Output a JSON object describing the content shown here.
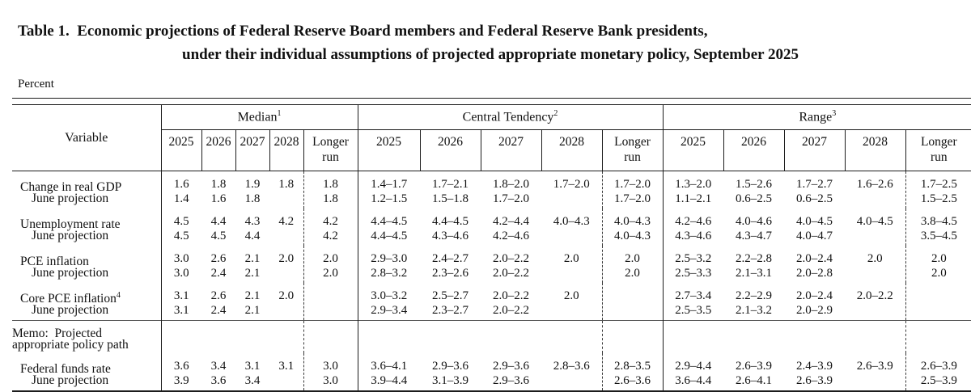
{
  "title_line1": "Table 1.  Economic projections of Federal Reserve Board members and Federal Reserve Bank presidents,",
  "title_line2": "under their individual assumptions of projected appropriate monetary policy, September 2025",
  "unit_label": "Percent",
  "table": {
    "variable_header": "Variable",
    "groups": [
      {
        "label": "Median",
        "sup": "1"
      },
      {
        "label": "Central Tendency",
        "sup": "2"
      },
      {
        "label": "Range",
        "sup": "3"
      }
    ],
    "year_cols": [
      "2025",
      "2026",
      "2027",
      "2028",
      "Longer\nrun"
    ],
    "rows": [
      {
        "name": "change-in-real-gdp",
        "lines": [
          "Change in real GDP",
          "June projection"
        ],
        "median": [
          [
            "1.6",
            "1.8",
            "1.9",
            "1.8",
            "1.8"
          ],
          [
            "1.4",
            "1.6",
            "1.8",
            "",
            "1.8"
          ]
        ],
        "central_tendency": [
          [
            "1.4–1.7",
            "1.7–2.1",
            "1.8–2.0",
            "1.7–2.0",
            "1.7–2.0"
          ],
          [
            "1.2–1.5",
            "1.5–1.8",
            "1.7–2.0",
            "",
            "1.7–2.0"
          ]
        ],
        "range": [
          [
            "1.3–2.0",
            "1.5–2.6",
            "1.7–2.7",
            "1.6–2.6",
            "1.7–2.5"
          ],
          [
            "1.1–2.1",
            "0.6–2.5",
            "0.6–2.5",
            "",
            "1.5–2.5"
          ]
        ]
      },
      {
        "name": "unemployment-rate",
        "lines": [
          "Unemployment rate",
          "June projection"
        ],
        "median": [
          [
            "4.5",
            "4.4",
            "4.3",
            "4.2",
            "4.2"
          ],
          [
            "4.5",
            "4.5",
            "4.4",
            "",
            "4.2"
          ]
        ],
        "central_tendency": [
          [
            "4.4–4.5",
            "4.4–4.5",
            "4.2–4.4",
            "4.0–4.3",
            "4.0–4.3"
          ],
          [
            "4.4–4.5",
            "4.3–4.6",
            "4.2–4.6",
            "",
            "4.0–4.3"
          ]
        ],
        "range": [
          [
            "4.2–4.6",
            "4.0–4.6",
            "4.0–4.5",
            "4.0–4.5",
            "3.8–4.5"
          ],
          [
            "4.3–4.6",
            "4.3–4.7",
            "4.0–4.7",
            "",
            "3.5–4.5"
          ]
        ]
      },
      {
        "name": "pce-inflation",
        "lines": [
          "PCE inflation",
          "June projection"
        ],
        "median": [
          [
            "3.0",
            "2.6",
            "2.1",
            "2.0",
            "2.0"
          ],
          [
            "3.0",
            "2.4",
            "2.1",
            "",
            "2.0"
          ]
        ],
        "central_tendency": [
          [
            "2.9–3.0",
            "2.4–2.7",
            "2.0–2.2",
            "2.0",
            "2.0"
          ],
          [
            "2.8–3.2",
            "2.3–2.6",
            "2.0–2.2",
            "",
            "2.0"
          ]
        ],
        "range": [
          [
            "2.5–3.2",
            "2.2–2.8",
            "2.0–2.4",
            "2.0",
            "2.0"
          ],
          [
            "2.5–3.3",
            "2.1–3.1",
            "2.0–2.8",
            "",
            "2.0"
          ]
        ]
      },
      {
        "name": "core-pce-inflation",
        "sup": "4",
        "lines": [
          "Core PCE inflation",
          "June projection"
        ],
        "median": [
          [
            "3.1",
            "2.6",
            "2.1",
            "2.0",
            ""
          ],
          [
            "3.1",
            "2.4",
            "2.1",
            "",
            ""
          ]
        ],
        "central_tendency": [
          [
            "3.0–3.2",
            "2.5–2.7",
            "2.0–2.2",
            "2.0",
            ""
          ],
          [
            "2.9–3.4",
            "2.3–2.7",
            "2.0–2.2",
            "",
            ""
          ]
        ],
        "range": [
          [
            "2.7–3.4",
            "2.2–2.9",
            "2.0–2.4",
            "2.0–2.2",
            ""
          ],
          [
            "2.5–3.5",
            "2.1–3.2",
            "2.0–2.9",
            "",
            ""
          ]
        ]
      },
      {
        "name": "memo-projected-policy-path",
        "memo": true,
        "lines": [
          "Memo:  Projected",
          "appropriate policy path"
        ]
      },
      {
        "name": "federal-funds-rate",
        "lines": [
          "Federal funds rate",
          "June projection"
        ],
        "median": [
          [
            "3.6",
            "3.4",
            "3.1",
            "3.1",
            "3.0"
          ],
          [
            "3.9",
            "3.6",
            "3.4",
            "",
            "3.0"
          ]
        ],
        "central_tendency": [
          [
            "3.6–4.1",
            "2.9–3.6",
            "2.9–3.6",
            "2.8–3.6",
            "2.8–3.5"
          ],
          [
            "3.9–4.4",
            "3.1–3.9",
            "2.9–3.6",
            "",
            "2.6–3.6"
          ]
        ],
        "range": [
          [
            "2.9–4.4",
            "2.6–3.9",
            "2.4–3.9",
            "2.6–3.9",
            "2.6–3.9"
          ],
          [
            "3.6–4.4",
            "2.6–4.1",
            "2.6–3.9",
            "",
            "2.5–3.9"
          ]
        ]
      }
    ]
  }
}
